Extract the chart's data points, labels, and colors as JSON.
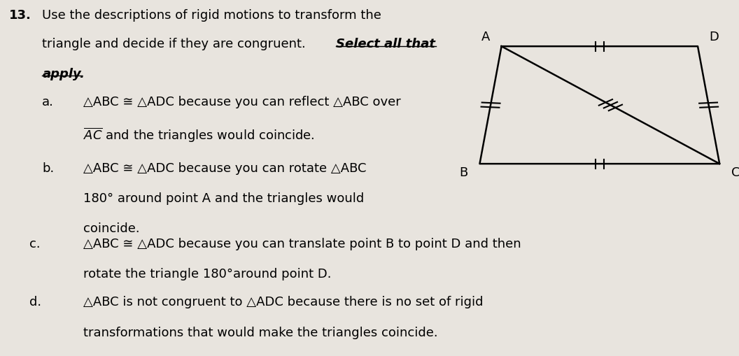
{
  "bg_color": "#e8e4de",
  "title_number": "13.",
  "title_text_line1": "Use the descriptions of rigid motions to transform the",
  "title_text_line2": "triangle and decide if they are congruent.  ",
  "title_text_select": "Select all that",
  "title_text_apply": "apply.",
  "item_a_label": "a.",
  "item_a_line1": "△ABC ≅ △ADC because you can reflect △ABC over",
  "item_a_line2": " and the triangles would coincide.",
  "item_b_label": "b.",
  "item_b_line1": "△ABC ≅ △ADC because you can rotate △ABC",
  "item_b_line2": "180° around point A and the triangles would",
  "item_b_line3": "coincide.",
  "item_c_label": "c.",
  "item_c_line1": "△ABC ≅ △ADC because you can translate point B to point D and then",
  "item_c_line2": "rotate the triangle 180°around point D.",
  "item_d_label": "d.",
  "item_d_line1": "△ABC is not congruent to △ADC because there is no set of rigid",
  "item_d_line2": "transformations that would make the triangles coincide.",
  "diamond_A": [
    0.69,
    0.87
  ],
  "diamond_D": [
    0.96,
    0.87
  ],
  "diamond_C": [
    0.99,
    0.54
  ],
  "diamond_B": [
    0.66,
    0.54
  ]
}
